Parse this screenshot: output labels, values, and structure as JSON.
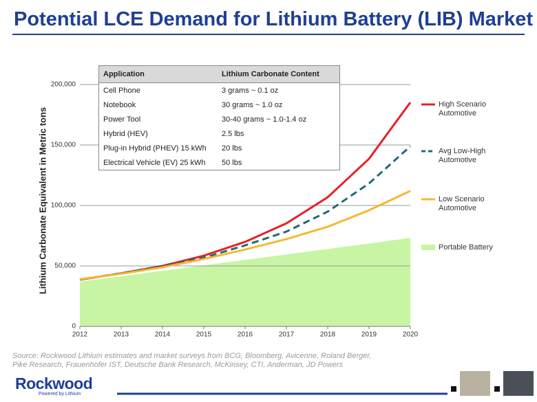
{
  "chart_data": {
    "type": "line",
    "title": "Potential LCE Demand for Lithium Battery (LIB) Market",
    "y_label": "Lithium Carbonate Equivalent in Metric tons",
    "x": [
      2012,
      2013,
      2014,
      2015,
      2016,
      2017,
      2018,
      2019,
      2020
    ],
    "xlim": [
      2012,
      2020
    ],
    "xticks": [
      2012,
      2013,
      2014,
      2015,
      2016,
      2017,
      2018,
      2019,
      2020
    ],
    "ylim": [
      0,
      200000
    ],
    "yticks": [
      0,
      {
        "value": 50000,
        "label": "50,000"
      },
      {
        "value": 100000,
        "label": "100,000"
      },
      {
        "value": 150000,
        "label": "150,000"
      },
      {
        "value": 200000,
        "label": "200,000"
      }
    ],
    "grid": true,
    "series": [
      {
        "name": "High Scenario Automotive",
        "color": "#e8202a",
        "values": [
          38600,
          43800,
          50000,
          58500,
          69900,
          85200,
          106800,
          138600,
          185200
        ]
      },
      {
        "name": "Avg Low-High Automotive",
        "color": "#1d6b73",
        "dash": true,
        "values": [
          38800,
          43900,
          50000,
          56800,
          67000,
          78400,
          94900,
          118200,
          148900
        ]
      },
      {
        "name": "Low Scenario Automotive",
        "color": "#f5b82e",
        "values": [
          39000,
          43500,
          48900,
          55700,
          63600,
          72200,
          82400,
          96000,
          112000
        ]
      },
      {
        "name": "Portable Battery",
        "color": "#c8f5a4",
        "fill": true,
        "values": [
          37000,
          41500,
          46000,
          50500,
          55000,
          59500,
          64000,
          68500,
          73300
        ]
      }
    ]
  },
  "table": {
    "header": [
      "Application",
      "Lithium Carbonate Content"
    ],
    "rows": [
      [
        "Cell Phone",
        "3 grams ~ 0.1 oz"
      ],
      [
        "Notebook",
        "30 grams ~ 1.0 oz"
      ],
      [
        "Power Tool",
        "30-40 grams ~ 1.0-1.4 oz"
      ],
      [
        "Hybrid (HEV)",
        "2.5 lbs"
      ],
      [
        "Plug-in Hybrid (PHEV) 15 kWh",
        "20 lbs"
      ],
      [
        "Electrical Vehicle (EV) 25 kWh",
        "50 lbs"
      ]
    ]
  },
  "source": [
    "Source: Rockwood Lithium estimates and market surveys from BCG, Bloomberg, Avicenne, Roland Berger,",
    "Pike Research, Frauenhofer IST, Deutsche Bank Research, McKinsey, CTI, Anderman, JD Powers"
  ],
  "logo": {
    "name": "Rockwood",
    "tagline": "Powered by Lithium"
  }
}
